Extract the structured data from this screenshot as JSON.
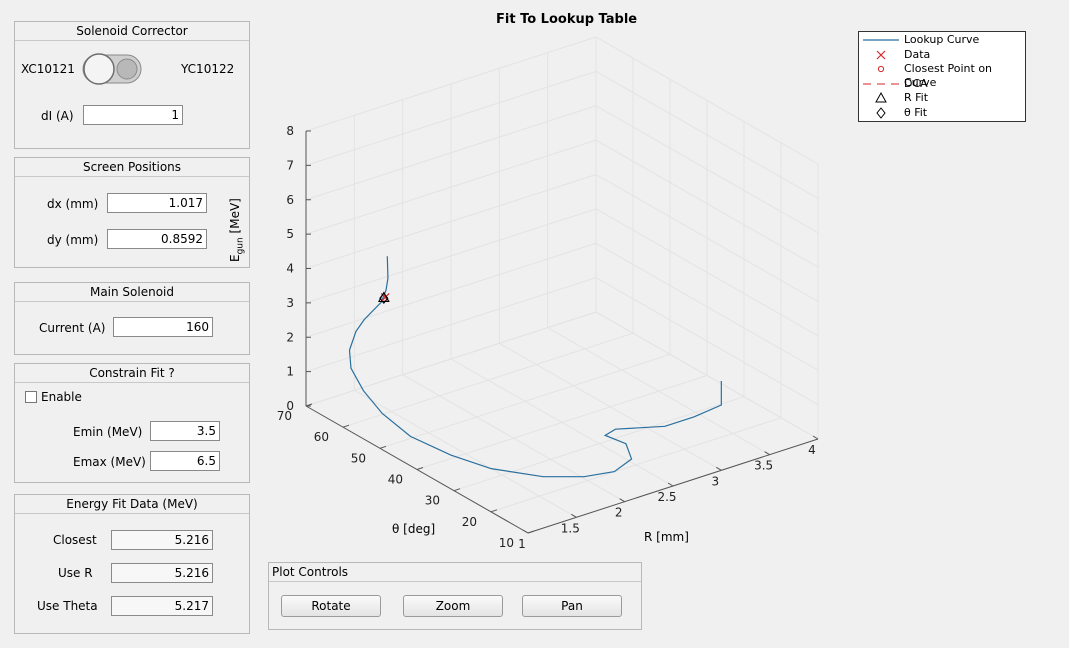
{
  "solenoid_corrector": {
    "title": "Solenoid Corrector",
    "left_label": "XC10121",
    "right_label": "YC10122",
    "di_label": "dI (A)",
    "di_value": "1"
  },
  "screen_positions": {
    "title": "Screen Positions",
    "dx_label": "dx (mm)",
    "dx_value": "1.017",
    "dy_label": "dy (mm)",
    "dy_value": "0.8592"
  },
  "main_solenoid": {
    "title": "Main Solenoid",
    "current_label": "Current (A)",
    "current_value": "160"
  },
  "constrain_fit": {
    "title": "Constrain Fit ?",
    "enable_label": "Enable",
    "enabled": false,
    "emin_label": "Emin (MeV)",
    "emin_value": "3.5",
    "emax_label": "Emax (MeV)",
    "emax_value": "6.5"
  },
  "energy_fit": {
    "title": "Energy Fit Data (MeV)",
    "closest_label": "Closest",
    "closest_value": "5.216",
    "use_r_label": "Use R",
    "use_r_value": "5.216",
    "use_theta_label": "Use Theta",
    "use_theta_value": "5.217"
  },
  "plot_controls": {
    "title": "Plot Controls",
    "rotate_label": "Rotate",
    "zoom_label": "Zoom",
    "pan_label": "Pan"
  },
  "colors": {
    "curve": "#2a6f9e",
    "data_marker": "#d62728",
    "closest_marker": "#d62728",
    "grid": "#e3e3e3"
  },
  "chart_data": {
    "type": "line",
    "title": "Fit To Lookup Table",
    "xlabel": "R [mm]",
    "ylabel": "θ [deg]",
    "zlabel": "E_gun [MeV]",
    "zlabel_main": "E",
    "zlabel_sub": "gun",
    "zlabel_unit": " [MeV]",
    "xlim": [
      1,
      4
    ],
    "ylim": [
      10,
      70
    ],
    "zlim": [
      0,
      8
    ],
    "x_ticks": [
      "1",
      "1.5",
      "2",
      "2.5",
      "3",
      "3.5",
      "4"
    ],
    "y_ticks": [
      "10",
      "20",
      "30",
      "40",
      "50",
      "60",
      "70"
    ],
    "z_ticks": [
      "0",
      "1",
      "2",
      "3",
      "4",
      "5",
      "6",
      "7",
      "8"
    ],
    "grid": true,
    "legend_position": "top-right outside",
    "legend": [
      {
        "label": "Lookup Curve",
        "symbol": "line"
      },
      {
        "label": "Data",
        "symbol": "x"
      },
      {
        "label": "Closest Point on Curve",
        "symbol": "circle"
      },
      {
        "label": "DCA",
        "symbol": "dashed-line"
      },
      {
        "label": "R Fit",
        "symbol": "triangle"
      },
      {
        "label": "θ Fit",
        "symbol": "diamond"
      }
    ],
    "series": [
      {
        "name": "Lookup Curve",
        "points": [
          [
            1.42,
            59.0,
            4.65
          ],
          [
            1.35,
            57.0,
            4.2
          ],
          [
            1.3,
            56.2,
            3.95
          ],
          [
            1.22,
            55.4,
            3.72
          ],
          [
            1.05,
            55.6,
            3.35
          ],
          [
            1.0,
            56.5,
            3.0
          ],
          [
            0.96,
            57.2,
            2.45
          ],
          [
            0.96,
            56.8,
            1.95
          ],
          [
            1.02,
            55.0,
            1.35
          ],
          [
            1.1,
            52.0,
            0.8
          ],
          [
            1.2,
            47.0,
            0.35
          ],
          [
            1.35,
            40.0,
            0.1
          ],
          [
            1.5,
            33.0,
            0.0
          ],
          [
            1.75,
            25.5,
            0.0
          ],
          [
            2.0,
            21.0,
            0.05
          ],
          [
            2.2,
            18.0,
            0.2
          ],
          [
            2.32,
            16.5,
            0.55
          ],
          [
            2.3,
            17.5,
            0.95
          ],
          [
            2.2,
            20.5,
            1.1
          ],
          [
            2.28,
            19.8,
            1.25
          ],
          [
            2.6,
            14.8,
            1.35
          ],
          [
            2.8,
            12.2,
            1.6
          ],
          [
            3.0,
            10.0,
            1.9
          ],
          [
            3.0,
            10.0,
            2.2
          ],
          [
            3.0,
            10.0,
            2.6
          ]
        ]
      },
      {
        "name": "Data",
        "points": [
          [
            1.26,
            55.4,
            3.82
          ]
        ]
      },
      {
        "name": "Closest Point on Curve",
        "points": [
          [
            1.25,
            55.5,
            3.8
          ]
        ]
      },
      {
        "name": "R Fit",
        "points": [
          [
            1.25,
            55.5,
            3.82
          ]
        ]
      },
      {
        "name": "θ Fit",
        "points": [
          [
            1.25,
            55.5,
            3.8
          ]
        ]
      }
    ]
  }
}
